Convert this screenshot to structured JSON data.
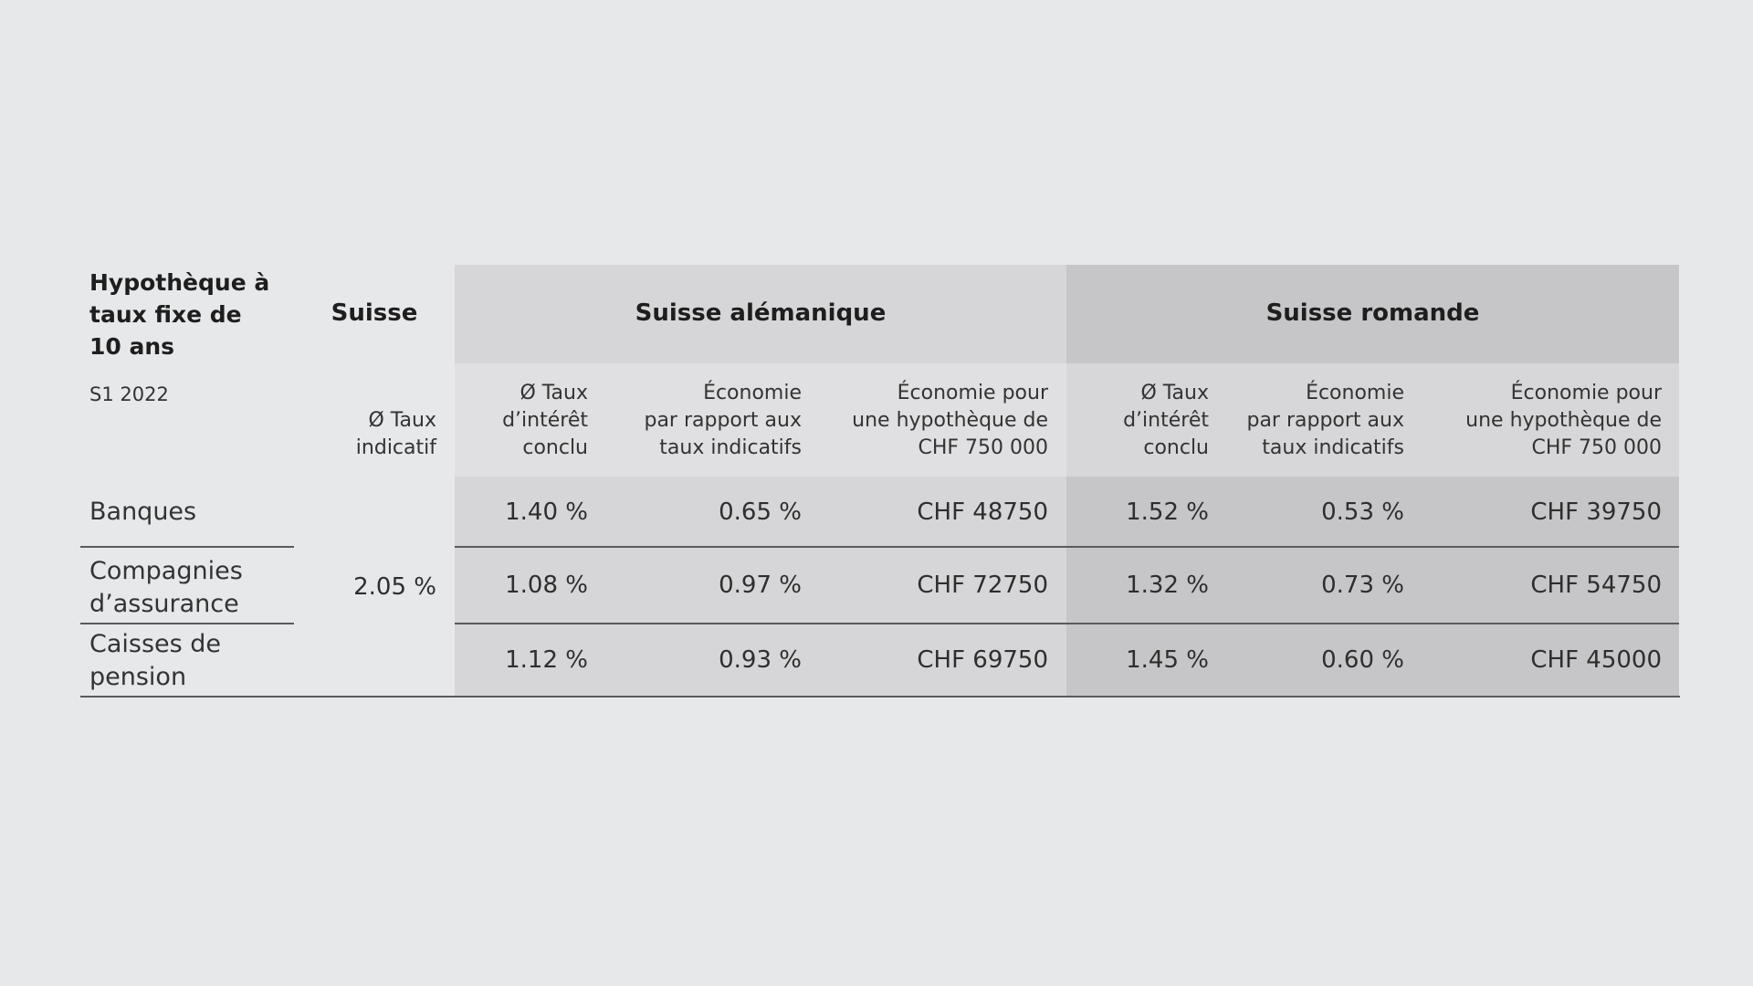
{
  "table": {
    "title": "Hypothèque à\ntaux fixe de\n10 ans",
    "period": "S1 2022",
    "swiss_header": "Suisse",
    "swiss_subheader": "Ø Taux\nindicatif",
    "swiss_indicative_rate": "2.05 %",
    "groups": [
      {
        "name": "Suisse alémanique",
        "columns": [
          "Ø Taux\nd’intérêt\nconclu",
          "Économie\npar rapport aux\ntaux indicatifs",
          "Économie pour\nune hypothèque de\nCHF 750 000"
        ]
      },
      {
        "name": "Suisse romande",
        "columns": [
          "Ø Taux\nd’intérêt\nconclu",
          "Économie\npar rapport aux\ntaux indicatifs",
          "Économie pour\nune hypothèque de\nCHF 750 000"
        ]
      }
    ],
    "rows": [
      {
        "label": "Banques",
        "values": [
          "1.40 %",
          "0.65 %",
          "CHF 48750",
          "1.52 %",
          "0.53 %",
          "CHF 39750"
        ]
      },
      {
        "label": "Compagnies\nd’assurance",
        "values": [
          "1.08 %",
          "0.97 %",
          "CHF 72750",
          "1.32 %",
          "0.73 %",
          "CHF 54750"
        ]
      },
      {
        "label": "Caisses de\npension",
        "values": [
          "1.12 %",
          "0.93 %",
          "CHF 69750",
          "1.45 %",
          "0.60 %",
          "CHF 45000"
        ]
      }
    ]
  }
}
